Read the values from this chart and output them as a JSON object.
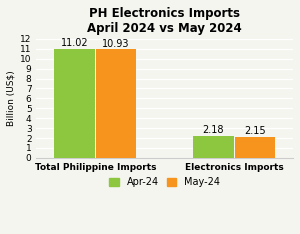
{
  "title_line1": "PH Electronics Imports",
  "title_line2": "April 2024 vs May 2024",
  "categories": [
    "Total Philippine Imports",
    "Electronics Imports"
  ],
  "apr_values": [
    11.02,
    2.18
  ],
  "may_values": [
    10.93,
    2.15
  ],
  "apr_color": "#8DC63F",
  "may_color": "#F7941D",
  "ylabel": "Billion (US$)",
  "ylim": [
    0,
    12
  ],
  "yticks": [
    0,
    1,
    2,
    3,
    4,
    5,
    6,
    7,
    8,
    9,
    10,
    11,
    12
  ],
  "legend_labels": [
    "Apr-24",
    "May-24"
  ],
  "bar_width": 0.38,
  "group_positions": [
    0.55,
    1.85
  ],
  "label_fontsize": 7.0,
  "title_fontsize": 8.5,
  "axis_fontsize": 6.5,
  "ylabel_fontsize": 6.5,
  "background_color": "#f5f5f0"
}
